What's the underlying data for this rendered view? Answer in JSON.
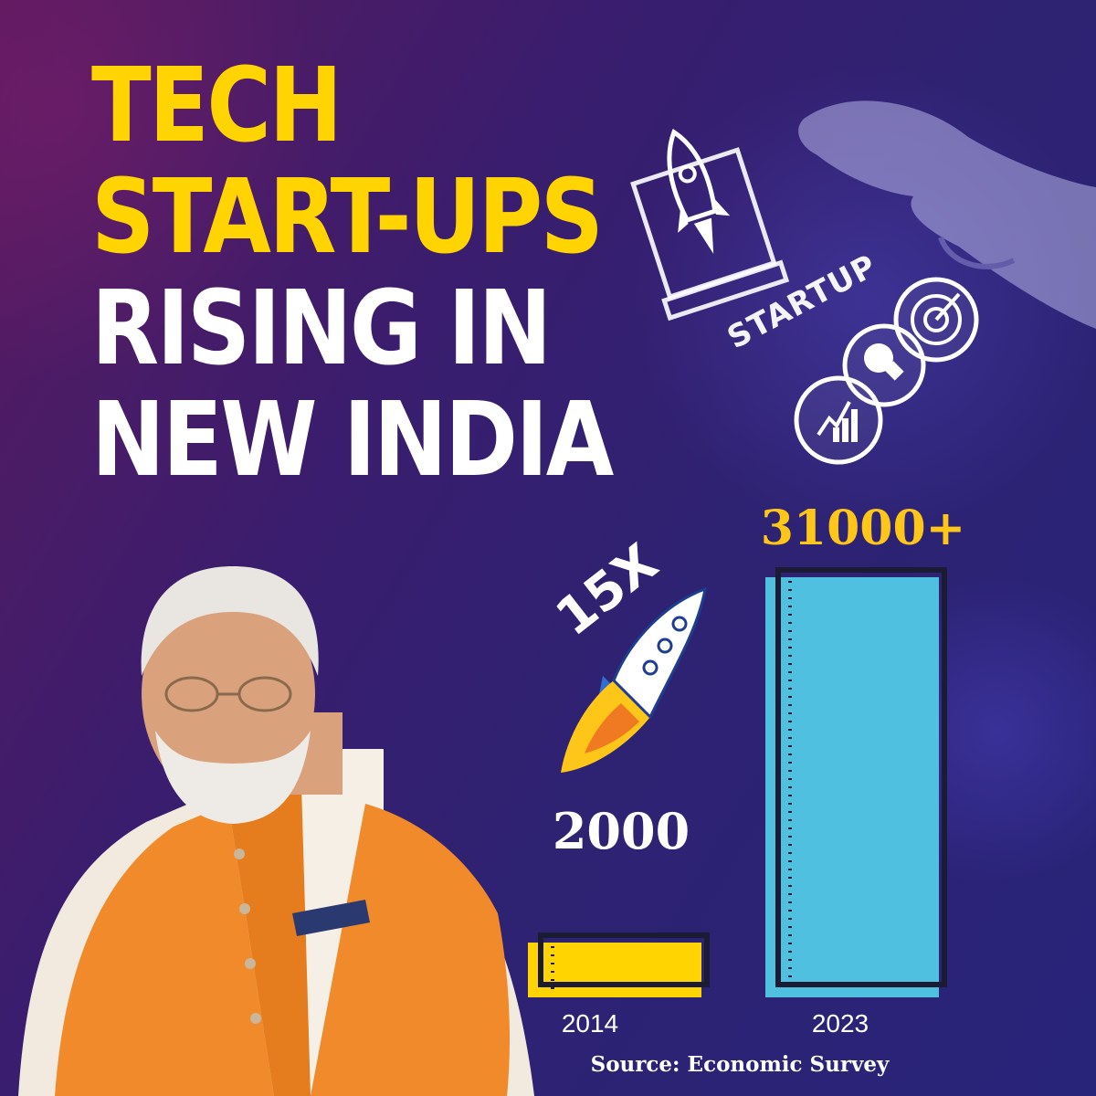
{
  "headline": {
    "line1": "TECH",
    "line2": "START-UPS",
    "line3": "RISING IN",
    "line4": "NEW INDIA"
  },
  "illustration": {
    "startup_word": "STARTUP",
    "icons": [
      "rocket-laptop-icon",
      "target-icon",
      "lightbulb-icon",
      "growth-chart-icon",
      "hand-icon",
      "rocket-icon"
    ],
    "multiplier": "15X"
  },
  "chart_data": {
    "type": "bar",
    "categories": [
      "2014",
      "2023"
    ],
    "values": [
      2000,
      31000
    ],
    "value_labels": [
      "2000",
      "31000+"
    ],
    "colors": [
      "#ffd400",
      "#4fc0df"
    ],
    "title": "",
    "xlabel": "",
    "ylabel": "",
    "ylim": [
      0,
      31000
    ]
  },
  "source": "Source: Economic Survey",
  "colors": {
    "headline_yellow": "#ffd400",
    "headline_white": "#ffffff",
    "background": "#2e2272",
    "bar_2014": "#ffd400",
    "bar_2023": "#4fc0df",
    "vest_orange": "#f08a2a"
  }
}
